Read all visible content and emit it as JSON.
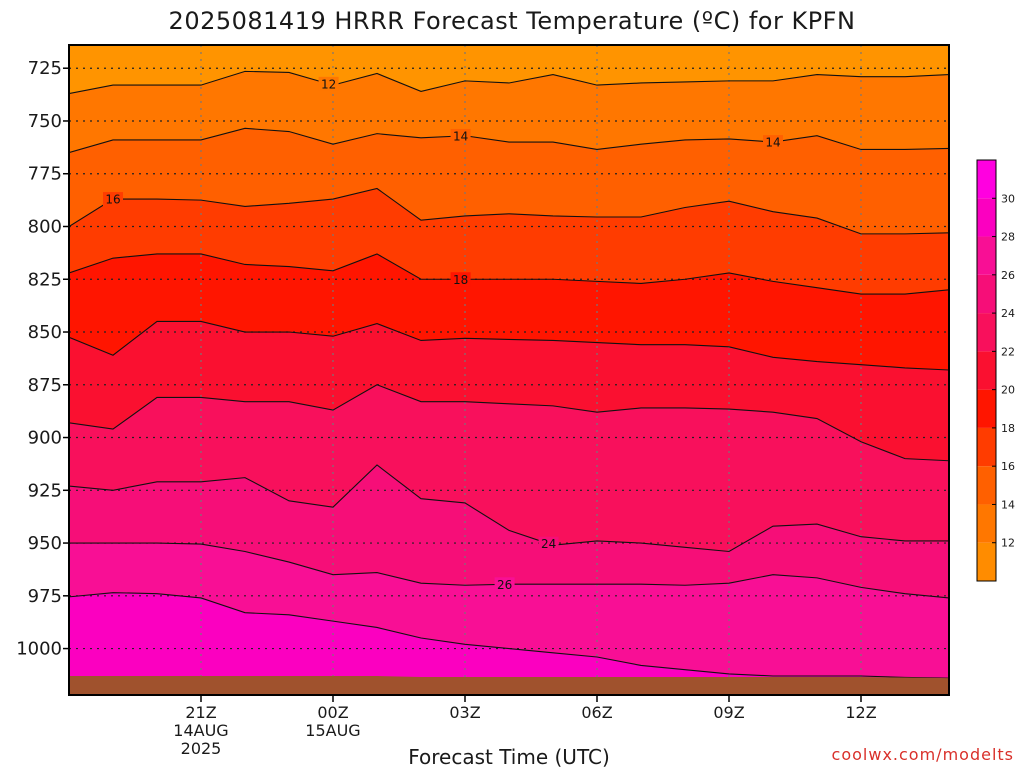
{
  "chart_data": {
    "type": "heatmap",
    "title": "2025081419 HRRR Forecast Temperature (ºC) for KPFN",
    "xlabel": "Forecast Time (UTC)",
    "ylabel": "",
    "credit": "coolwx.com/modelts",
    "x_hours": [
      -1,
      0,
      1,
      2,
      3,
      4,
      5,
      6,
      7,
      8,
      9,
      10,
      11,
      12,
      13,
      14,
      15,
      16,
      17,
      18,
      19
    ],
    "xlim": [
      -1,
      19
    ],
    "xticks": [
      {
        "hour": 2,
        "lines": [
          "21Z",
          "14AUG",
          "2025"
        ]
      },
      {
        "hour": 5,
        "lines": [
          "00Z",
          "15AUG"
        ]
      },
      {
        "hour": 8,
        "lines": [
          "03Z"
        ]
      },
      {
        "hour": 11,
        "lines": [
          "06Z"
        ]
      },
      {
        "hour": 14,
        "lines": [
          "09Z"
        ]
      },
      {
        "hour": 17,
        "lines": [
          "12Z"
        ]
      }
    ],
    "ylim_hPa": [
      714,
      1022
    ],
    "yticks": [
      725,
      750,
      775,
      800,
      825,
      850,
      875,
      900,
      925,
      950,
      975,
      1000
    ],
    "grid": true,
    "surface_pressure_hPa": [
      1013,
      1013,
      1013,
      1013,
      1013,
      1013,
      1013,
      1013,
      1013.5,
      1013.5,
      1013.5,
      1013.5,
      1013.5,
      1013.5,
      1013.5,
      1013.5,
      1013.5,
      1013.5,
      1013.5,
      1013.7,
      1014
    ],
    "contour_levels": [
      12,
      14,
      16,
      18,
      20,
      22,
      24,
      26,
      28,
      30
    ],
    "contours": [
      {
        "level": 12,
        "p": [
          737,
          733,
          733,
          733,
          726.5,
          727,
          733,
          727.5,
          736,
          731,
          732,
          728,
          733,
          732,
          731.5,
          731,
          731,
          728,
          729,
          729,
          728
        ]
      },
      {
        "level": 14,
        "p": [
          765,
          759,
          759,
          759,
          753.5,
          755,
          761,
          756,
          758,
          757,
          760,
          760,
          763.5,
          761,
          759,
          758.5,
          760,
          757,
          763.5,
          763.5,
          763
        ]
      },
      {
        "level": 16,
        "p": [
          800,
          787,
          787,
          787.5,
          790.5,
          789,
          787,
          782,
          797,
          795,
          794,
          795,
          795.5,
          795.5,
          791,
          788,
          793,
          796,
          803.5,
          803.5,
          803
        ]
      },
      {
        "level": 18,
        "p": [
          822,
          815,
          813,
          813,
          818,
          819,
          821,
          813,
          825,
          825,
          825,
          825,
          826,
          827,
          825,
          822,
          826,
          829,
          832,
          832,
          830
        ]
      },
      {
        "level": 20,
        "p": [
          852.5,
          861,
          845,
          845,
          850,
          850,
          852,
          846,
          854,
          853,
          853.5,
          854,
          855,
          856,
          856,
          857,
          862,
          864,
          865.5,
          867,
          868
        ]
      },
      {
        "level": 22,
        "p": [
          893,
          896,
          881,
          881,
          883,
          883,
          887,
          875,
          883,
          883,
          884,
          885,
          888,
          886,
          886,
          886.5,
          888,
          891,
          902,
          910,
          911
        ]
      },
      {
        "level": 24,
        "p": [
          923,
          925,
          921,
          921,
          919,
          930,
          933,
          913,
          929,
          931,
          944,
          951,
          949,
          950,
          952,
          954,
          942,
          941,
          947,
          949,
          949
        ]
      },
      {
        "level": 26,
        "p": [
          950,
          950,
          950,
          950.5,
          954,
          959,
          965,
          964,
          969,
          970,
          969.5,
          969.5,
          969.5,
          969.5,
          970,
          969,
          965,
          966.5,
          971,
          974,
          976
        ]
      },
      {
        "level": 28,
        "p": [
          975.5,
          973.5,
          974,
          976,
          983,
          984,
          987,
          990,
          995,
          998,
          1000,
          1002,
          1004,
          1008,
          1010,
          1012,
          1013,
          1013,
          1013,
          1013.7,
          1014
        ]
      }
    ],
    "contour_labels": [
      {
        "level": 12,
        "hour": 4.9
      },
      {
        "level": 14,
        "hour": 7.9
      },
      {
        "level": 14,
        "hour": 15.0
      },
      {
        "level": 16,
        "hour": 0.0
      },
      {
        "level": 18,
        "hour": 7.9
      },
      {
        "level": 24,
        "hour": 9.9
      },
      {
        "level": 26,
        "hour": 8.9
      }
    ],
    "colorbar": {
      "bins": [
        {
          "lo": 10,
          "hi": 12,
          "color": "#ff8c00"
        },
        {
          "lo": 12,
          "hi": 14,
          "color": "#ff7700"
        },
        {
          "lo": 14,
          "hi": 16,
          "color": "#ff6000"
        },
        {
          "lo": 16,
          "hi": 18,
          "color": "#ff3c00"
        },
        {
          "lo": 18,
          "hi": 20,
          "color": "#ff1500"
        },
        {
          "lo": 20,
          "hi": 22,
          "color": "#fa1030"
        },
        {
          "lo": 22,
          "hi": 24,
          "color": "#f8105c"
        },
        {
          "lo": 24,
          "hi": 26,
          "color": "#f60e78"
        },
        {
          "lo": 26,
          "hi": 28,
          "color": "#f80f95"
        },
        {
          "lo": 28,
          "hi": 30,
          "color": "#fb00c0"
        },
        {
          "lo": 30,
          "hi": 32,
          "color": "#ff00e0"
        }
      ],
      "ticks": [
        12,
        14,
        16,
        18,
        20,
        22,
        24,
        26,
        28,
        30
      ]
    },
    "top_fill_color": "#ff9400",
    "ground_color": "#a0522d"
  }
}
